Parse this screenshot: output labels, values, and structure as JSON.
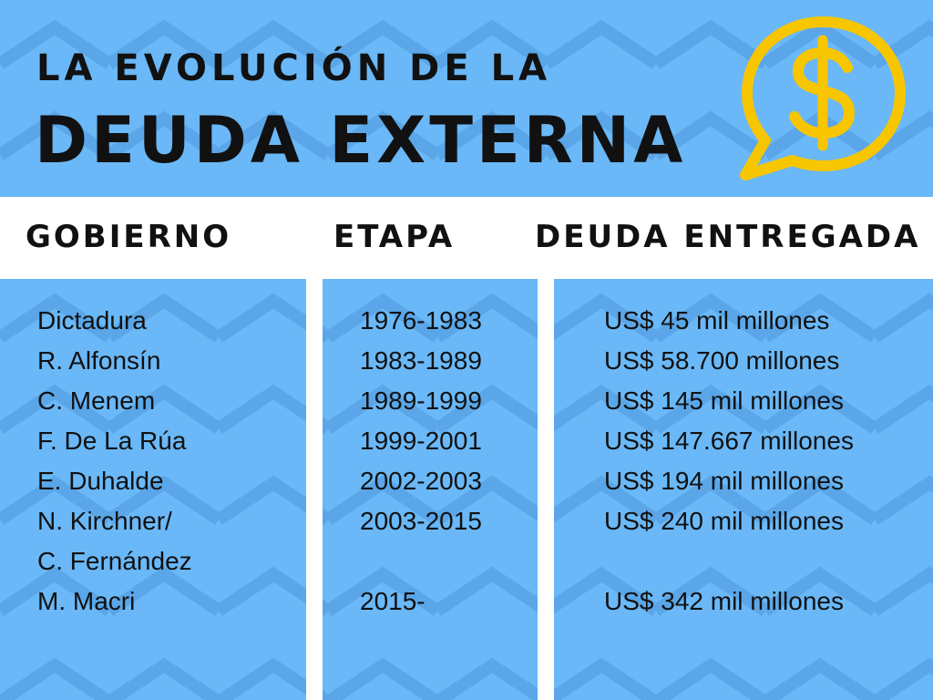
{
  "colors": {
    "background_blue": "#6ab8f7",
    "chevron_blue": "#5aa6e8",
    "accent_yellow": "#f7c600",
    "text": "#111111"
  },
  "header": {
    "title_line1": "LA EVOLUCIÓN DE LA",
    "title_line2": "DEUDA EXTERNA",
    "icon": "dollar-speech-bubble-icon"
  },
  "columns": {
    "gobierno": "GOBIERNO",
    "etapa": "ETAPA",
    "deuda": "DEUDA ENTREGADA"
  },
  "gobierno": [
    "Dictadura",
    "R. Alfonsín",
    "C. Menem",
    "F. De La Rúa",
    "E. Duhalde",
    "N. Kirchner/",
    "C. Fernández",
    "M. Macri"
  ],
  "etapa": [
    "1976-1983",
    "1983-1989",
    "1989-1999",
    "1999-2001",
    "2002-2003",
    "2003-2015",
    "",
    "2015-"
  ],
  "deuda": [
    "US$ 45 mil millones",
    "US$ 58.700 millones",
    "US$ 145 mil millones",
    "US$ 147.667 millones",
    "US$ 194 mil millones",
    "US$ 240 mil millones",
    "",
    "US$ 342 mil millones"
  ]
}
